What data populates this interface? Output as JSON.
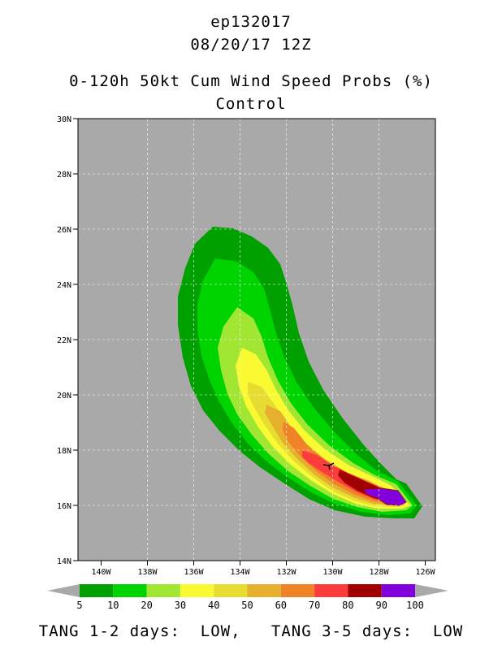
{
  "header": {
    "storm_id": "ep132017",
    "datetime": "08/20/17 12Z",
    "product": "0-120h 50kt Cum Wind Speed Probs (%)",
    "run": "Control"
  },
  "map": {
    "background_color": "#a9a9a9",
    "lat_labels": [
      "30N",
      "28N",
      "26N",
      "24N",
      "22N",
      "20N",
      "18N",
      "16N",
      "14N"
    ],
    "lon_labels": [
      "140W",
      "138W",
      "136W",
      "134W",
      "132W",
      "130W",
      "128W",
      "126W"
    ],
    "storm_marker": "tropical-storm-symbol"
  },
  "legend": {
    "levels": [
      "5",
      "10",
      "20",
      "30",
      "40",
      "50",
      "60",
      "70",
      "80",
      "90",
      "100"
    ],
    "colors": [
      "#00a000",
      "#00d400",
      "#a0e632",
      "#fafa32",
      "#e6dc32",
      "#e6af2d",
      "#f08228",
      "#fa3c3c",
      "#a00000",
      "#8200dc"
    ]
  },
  "footer": {
    "text": "TANG 1-2 days:  LOW,   TANG 3-5 days:  LOW"
  }
}
